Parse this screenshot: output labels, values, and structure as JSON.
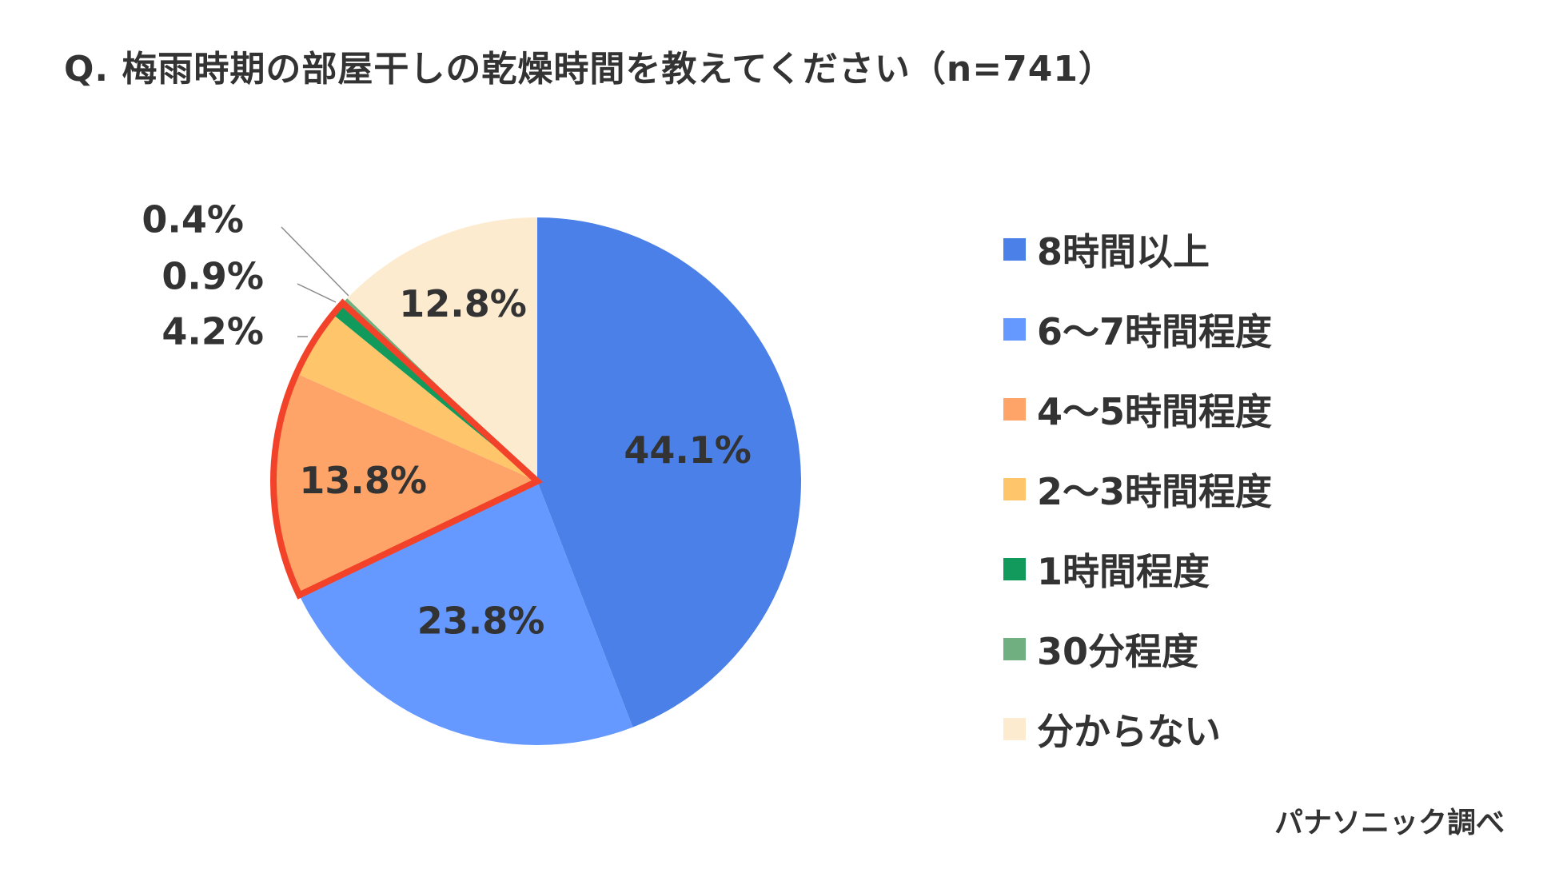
{
  "title": "Q. 梅雨時期の部屋干しの乾燥時間を教えてください（n=741）",
  "source": "パナソニック調べ",
  "chart_data": {
    "type": "pie",
    "categories": [
      "8時間以上",
      "6〜7時間程度",
      "4〜5時間程度",
      "2〜3時間程度",
      "1時間程度",
      "30分程度",
      "分からない"
    ],
    "values": [
      44.1,
      23.8,
      13.8,
      4.2,
      0.9,
      0.4,
      12.8
    ],
    "value_labels": [
      "44.1%",
      "23.8%",
      "13.8%",
      "4.2%",
      "0.9%",
      "0.4%",
      "12.8%"
    ],
    "colors": [
      "#4a80e8",
      "#6699ff",
      "#ffa468",
      "#ffc56a",
      "#129a5c",
      "#70b080",
      "#fdebd0"
    ],
    "highlight": {
      "categories": [
        "4〜5時間程度",
        "2〜3時間程度",
        "1時間程度"
      ],
      "color": "#f2432a"
    },
    "start": "12 o'clock",
    "direction": "clockwise",
    "legend_position": "right"
  }
}
